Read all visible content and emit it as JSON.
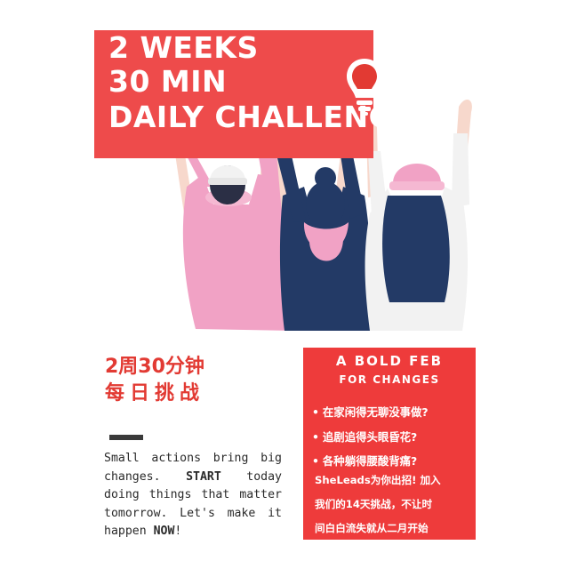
{
  "title": {
    "line1": "2 WEEKS",
    "line2": "30 MIN",
    "line3": "DAILY CHALLENGE"
  },
  "chinese_title": {
    "line1": "2周30分钟",
    "line2": "每日挑战"
  },
  "body": {
    "part1": "Small actions bring big changes. ",
    "strong1": "START",
    "part2": " today doing things that matter tomorrow. Let's make it happen ",
    "strong2": "NOW",
    "part3": "!"
  },
  "promo": {
    "heading": "A BOLD FEB",
    "subheading": "FOR CHANGES",
    "bullets": [
      "在家闲得无聊没事做?",
      "追剧追得头眼昏花?",
      "各种躺得腰酸背痛?"
    ],
    "paragraph_lines": [
      "SheLeads为你出招! 加入",
      "我们的14天挑战，不让时",
      "间白白流失就从二月开始"
    ]
  },
  "icons": {
    "lightbulb": "lightbulb-icon",
    "bullet": "•"
  },
  "colors": {
    "accent_red": "#ee4b4b",
    "promo_red": "#ee3b3b",
    "chinese_text_red": "#e23a33",
    "pink": "#f1a2c5",
    "navy": "#233a66",
    "white_sweater": "#f2f2f2"
  }
}
